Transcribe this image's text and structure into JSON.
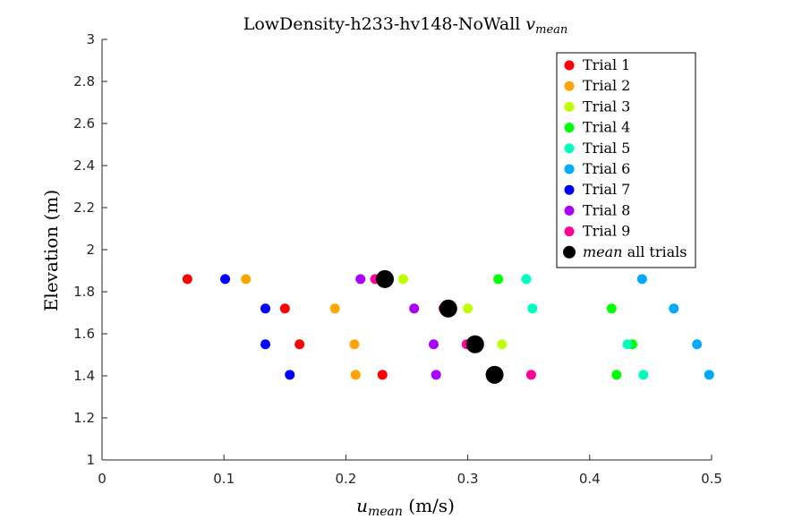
{
  "chart_data": {
    "type": "scatter",
    "title": "LowDensity-h233-hv148-NoWall",
    "title_var": "v",
    "title_var_sub": "mean",
    "xlabel_var": "u",
    "xlabel_var_sub": "mean",
    "xlabel_unit": " (m/s)",
    "ylabel": "Elevation (m)",
    "xlim": [
      0,
      0.5
    ],
    "ylim": [
      1,
      3
    ],
    "xticks": [
      "0",
      "0.1",
      "0.2",
      "0.3",
      "0.4",
      "0.5"
    ],
    "xtick_values": [
      0,
      0.1,
      0.2,
      0.3,
      0.4,
      0.5
    ],
    "yticks": [
      "1",
      "1.2",
      "1.4",
      "1.6",
      "1.8",
      "2",
      "2.2",
      "2.4",
      "2.6",
      "2.8",
      "3"
    ],
    "ytick_values": [
      1,
      1.2,
      1.4,
      1.6,
      1.8,
      2,
      2.2,
      2.4,
      2.6,
      2.8,
      3
    ],
    "grid": false,
    "legend_position": "top-right",
    "y": [
      1.86,
      1.72,
      1.55,
      1.405
    ],
    "series": [
      {
        "name": "Trial 1",
        "color": "#ff0000",
        "x": [
          0.07,
          0.15,
          0.162,
          0.23
        ]
      },
      {
        "name": "Trial 2",
        "color": "#ffa500",
        "x": [
          0.118,
          0.191,
          0.207,
          0.208
        ]
      },
      {
        "name": "Trial 3",
        "color": "#bfff00",
        "x": [
          0.247,
          0.3,
          0.328,
          0.322
        ]
      },
      {
        "name": "Trial 4",
        "color": "#00ff00",
        "x": [
          0.325,
          0.418,
          0.435,
          0.422
        ]
      },
      {
        "name": "Trial 5",
        "color": "#00ffbf",
        "x": [
          0.348,
          0.353,
          0.431,
          0.444
        ]
      },
      {
        "name": "Trial 6",
        "color": "#00aaff",
        "x": [
          0.443,
          0.469,
          0.488,
          0.498
        ]
      },
      {
        "name": "Trial 7",
        "color": "#0000ff",
        "x": [
          0.101,
          0.134,
          0.134,
          0.154
        ]
      },
      {
        "name": "Trial 8",
        "color": "#aa00ff",
        "x": [
          0.212,
          0.256,
          0.272,
          0.274
        ]
      },
      {
        "name": "Trial 9",
        "color": "#ff0099",
        "x": [
          0.224,
          0.28,
          0.299,
          0.352
        ]
      }
    ],
    "mean_series": {
      "name_var": "mean",
      "name_rest": " all trials",
      "color": "#000000",
      "x": [
        0.232,
        0.284,
        0.306,
        0.322
      ]
    }
  }
}
